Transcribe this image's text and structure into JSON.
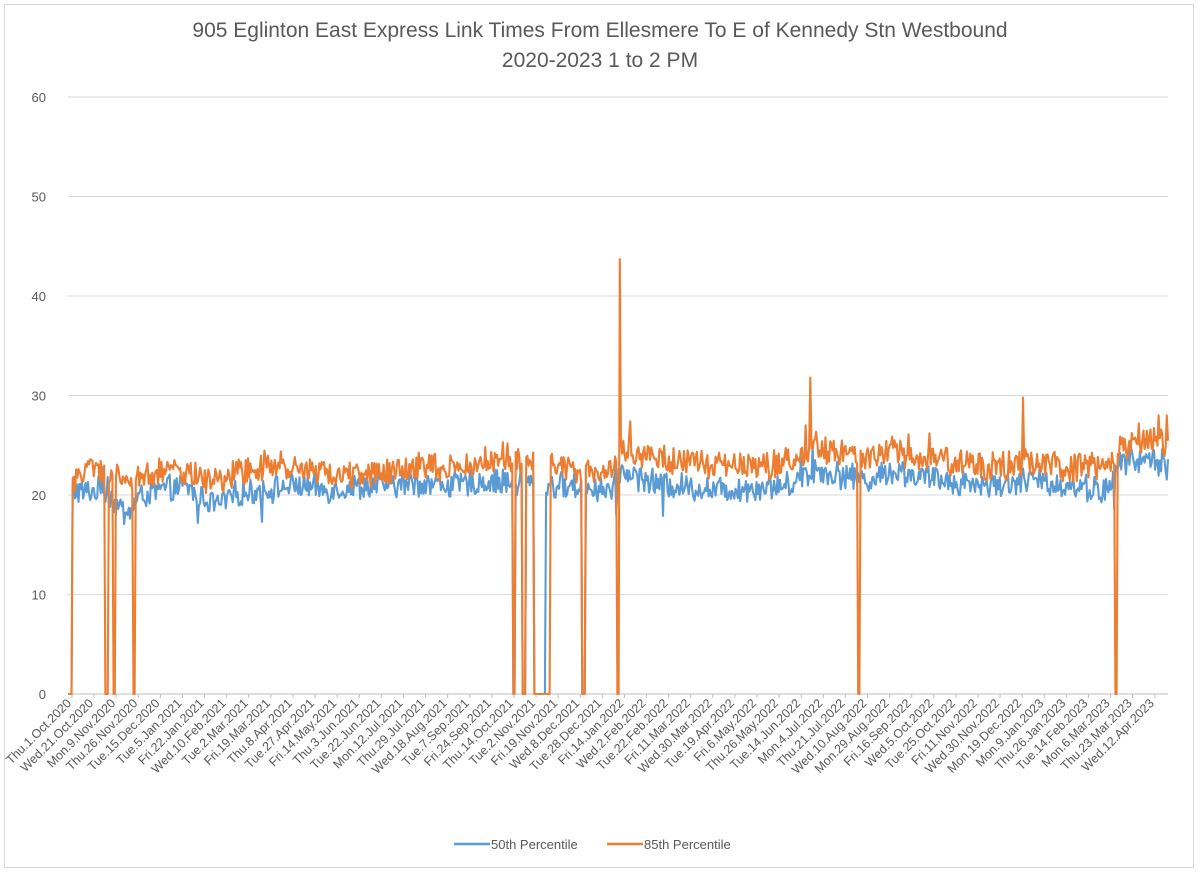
{
  "chart_data": {
    "type": "line",
    "title": "905 Eglinton East Express Link Times From Ellesmere To E of Kennedy Stn Westbound",
    "subtitle": "2020-2023 1 to 2 PM",
    "xlabel": "",
    "ylabel": "",
    "ylim": [
      0,
      60
    ],
    "yticks": [
      0,
      10,
      20,
      30,
      40,
      50,
      60
    ],
    "grid": true,
    "legend_position": "bottom",
    "x_range": [
      "2020-10-01",
      "2023-04-30"
    ],
    "x_tick_labels": [
      "Thu.1.Oct.2020",
      "Wed.21.Oct.2020",
      "Mon.9.Nov.2020",
      "Thu.26.Nov.2020",
      "Tue.15.Dec.2020",
      "Tue.5.Jan.2021",
      "Fri.22.Jan.2021",
      "Wed.10.Feb.2021",
      "Tue.2.Mar.2021",
      "Fri.19.Mar.2021",
      "Thu.8.Apr.2021",
      "Tue.27.Apr.2021",
      "Fri.14.May.2021",
      "Thu.3.Jun.2021",
      "Tue.22.Jun.2021",
      "Mon.12.Jul.2021",
      "Thu.29.Jul.2021",
      "Wed.18.Aug.2021",
      "Tue.7.Sep.2021",
      "Fri.24.Sep.2021",
      "Thu.14.Oct.2021",
      "Tue.2.Nov.2021",
      "Fri.19.Nov.2021",
      "Wed.8.Dec.2021",
      "Tue.28.Dec.2021",
      "Fri.14.Jan.2022",
      "Wed.2.Feb.2022",
      "Tue.22.Feb.2022",
      "Fri.11.Mar.2022",
      "Wed.30.Mar.2022",
      "Tue.19.Apr.2022",
      "Fri.6.May.2022",
      "Thu.26.May.2022",
      "Tue.14.Jun.2022",
      "Mon.4.Jul.2022",
      "Thu.21.Jul.2022",
      "Wed.10.Aug.2022",
      "Mon.29.Aug.2022",
      "Fri.16.Sep.2022",
      "Wed.5.Oct.2022",
      "Tue.25.Oct.2022",
      "Fri.11.Nov.2022",
      "Wed.30.Nov.2022",
      "Mon.19.Dec.2022",
      "Mon.9.Jan.2023",
      "Thu.26.Jan.2023",
      "Tue.14.Feb.2023",
      "Mon.6.Mar.2023",
      "Thu.23.Mar.2023",
      "Wed.12.Apr.2023"
    ],
    "series": [
      {
        "name": "50th Percentile",
        "color": "#5b9bd5",
        "base_points": [
          [
            "2020-10-01",
            0
          ],
          [
            "2020-10-03",
            0
          ],
          [
            "2020-10-05",
            20.5
          ],
          [
            "2020-10-15",
            20.3
          ],
          [
            "2020-11-01",
            20.5
          ],
          [
            "2020-11-10",
            19.2
          ],
          [
            "2020-11-20",
            18.0
          ],
          [
            "2020-12-01",
            19.8
          ],
          [
            "2020-12-20",
            20.5
          ],
          [
            "2021-01-10",
            20.8
          ],
          [
            "2021-02-05",
            19.0
          ],
          [
            "2021-02-25",
            20.2
          ],
          [
            "2021-03-20",
            20.5
          ],
          [
            "2021-04-15",
            21.0
          ],
          [
            "2021-05-10",
            20.5
          ],
          [
            "2021-06-05",
            20.8
          ],
          [
            "2021-07-01",
            21.0
          ],
          [
            "2021-08-01",
            21.2
          ],
          [
            "2021-09-01",
            21.0
          ],
          [
            "2021-10-01",
            21.4
          ],
          [
            "2021-11-15",
            21.0
          ],
          [
            "2021-12-15",
            20.8
          ],
          [
            "2022-01-10",
            20.5
          ],
          [
            "2022-01-17",
            22.5
          ],
          [
            "2022-02-15",
            21.2
          ],
          [
            "2022-03-15",
            20.8
          ],
          [
            "2022-04-15",
            20.5
          ],
          [
            "2022-05-15",
            20.8
          ],
          [
            "2022-06-10",
            21.0
          ],
          [
            "2022-07-01",
            22.5
          ],
          [
            "2022-07-25",
            22.0
          ],
          [
            "2022-08-20",
            21.5
          ],
          [
            "2022-09-05",
            22.5
          ],
          [
            "2022-10-01",
            21.8
          ],
          [
            "2022-11-01",
            21.3
          ],
          [
            "2022-12-01",
            21.0
          ],
          [
            "2023-01-01",
            21.5
          ],
          [
            "2023-02-01",
            21.0
          ],
          [
            "2023-02-28",
            20.6
          ],
          [
            "2023-03-10",
            20.3
          ],
          [
            "2023-03-20",
            23.5
          ],
          [
            "2023-04-20",
            23.5
          ],
          [
            "2023-04-30",
            22.8
          ]
        ],
        "noise_amplitude": 1.2,
        "spikes": [
          [
            "2020-10-30",
            22.8
          ],
          [
            "2020-11-04",
            21.8
          ],
          [
            "2021-01-20",
            17.2
          ],
          [
            "2021-03-16",
            17.3
          ],
          [
            "2022-01-13",
            18.0
          ],
          [
            "2022-02-22",
            17.9
          ],
          [
            "2022-06-20",
            23.8
          ],
          [
            "2022-06-30",
            25.0
          ],
          [
            "2023-03-15",
            18.6
          ],
          [
            "2023-04-25",
            24.6
          ]
        ],
        "zero_days": [
          [
            "2020-10-01",
            "2020-10-04"
          ],
          [
            "2021-10-17",
            "2021-10-18"
          ],
          [
            "2021-10-25",
            "2021-10-27"
          ],
          [
            "2021-11-04",
            "2021-11-08"
          ],
          [
            "2021-11-09",
            "2021-11-13"
          ],
          [
            "2021-12-15",
            "2021-12-17"
          ]
        ]
      },
      {
        "name": "85th Percentile",
        "color": "#ed7d31",
        "base_points": [
          [
            "2020-10-01",
            0
          ],
          [
            "2020-10-03",
            0
          ],
          [
            "2020-10-05",
            21.5
          ],
          [
            "2020-10-15",
            22.5
          ],
          [
            "2020-11-01",
            22.5
          ],
          [
            "2020-11-15",
            21.5
          ],
          [
            "2020-12-01",
            21.8
          ],
          [
            "2020-12-20",
            22.5
          ],
          [
            "2021-01-10",
            22.3
          ],
          [
            "2021-02-05",
            21.2
          ],
          [
            "2021-02-25",
            22.5
          ],
          [
            "2021-03-20",
            23.0
          ],
          [
            "2021-04-15",
            23.0
          ],
          [
            "2021-05-10",
            22.2
          ],
          [
            "2021-06-05",
            22.0
          ],
          [
            "2021-07-01",
            22.4
          ],
          [
            "2021-08-01",
            23.0
          ],
          [
            "2021-09-01",
            22.8
          ],
          [
            "2021-10-01",
            23.8
          ],
          [
            "2021-11-15",
            23.2
          ],
          [
            "2021-12-15",
            22.5
          ],
          [
            "2022-01-10",
            22.5
          ],
          [
            "2022-01-17",
            25.0
          ],
          [
            "2022-02-15",
            23.5
          ],
          [
            "2022-03-15",
            23.2
          ],
          [
            "2022-04-15",
            22.8
          ],
          [
            "2022-05-15",
            22.8
          ],
          [
            "2022-06-10",
            23.5
          ],
          [
            "2022-07-01",
            25.0
          ],
          [
            "2022-07-25",
            24.0
          ],
          [
            "2022-08-20",
            23.5
          ],
          [
            "2022-09-05",
            24.5
          ],
          [
            "2022-10-01",
            23.8
          ],
          [
            "2022-11-01",
            23.2
          ],
          [
            "2022-12-01",
            22.8
          ],
          [
            "2023-01-01",
            23.2
          ],
          [
            "2023-02-01",
            22.8
          ],
          [
            "2023-02-28",
            22.8
          ],
          [
            "2023-03-10",
            22.5
          ],
          [
            "2023-03-20",
            24.8
          ],
          [
            "2023-04-20",
            25.5
          ],
          [
            "2023-04-30",
            24.5
          ]
        ],
        "noise_amplitude": 1.3,
        "spikes": [
          [
            "2022-01-16",
            43.7
          ],
          [
            "2022-01-25",
            27.4
          ],
          [
            "2022-06-28",
            31.8
          ],
          [
            "2022-06-24",
            27.0
          ],
          [
            "2022-12-27",
            29.8
          ],
          [
            "2022-09-20",
            26.1
          ],
          [
            "2022-10-08",
            26.2
          ],
          [
            "2023-04-22",
            28.0
          ],
          [
            "2023-04-29",
            28.0
          ],
          [
            "2023-04-05",
            27.2
          ],
          [
            "2021-10-08",
            25.3
          ],
          [
            "2021-10-12",
            25.2
          ]
        ],
        "zero_days": [
          [
            "2020-10-01",
            "2020-10-04"
          ],
          [
            "2020-11-02",
            "2020-11-04"
          ],
          [
            "2020-11-09",
            "2020-11-10"
          ],
          [
            "2020-11-26",
            "2020-11-27"
          ],
          [
            "2021-10-17",
            "2021-10-18"
          ],
          [
            "2021-10-25",
            "2021-10-27"
          ],
          [
            "2021-11-04",
            "2021-11-08"
          ],
          [
            "2021-11-09",
            "2021-11-13"
          ],
          [
            "2021-11-14",
            "2021-11-15"
          ],
          [
            "2021-11-16",
            "2021-11-17"
          ],
          [
            "2021-12-15",
            "2021-12-17"
          ],
          [
            "2022-01-14",
            "2022-01-15"
          ],
          [
            "2022-08-08",
            "2022-08-09"
          ],
          [
            "2023-03-16",
            "2023-03-17"
          ]
        ]
      }
    ]
  }
}
